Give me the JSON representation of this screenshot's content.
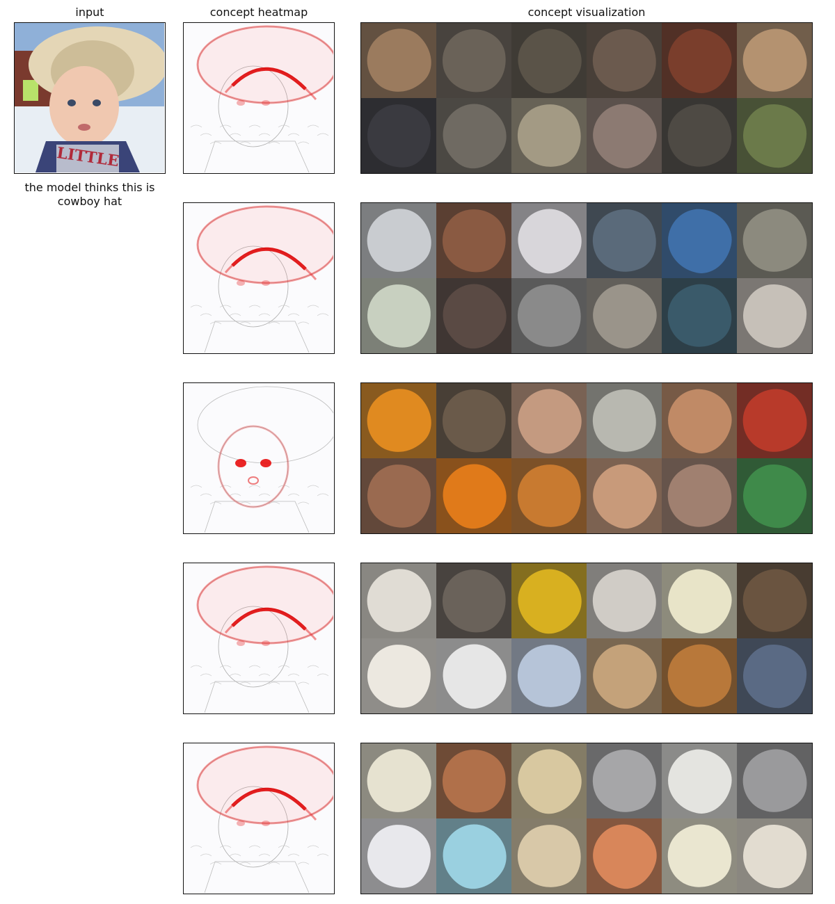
{
  "columns": {
    "input": "input",
    "heatmap": "concept heatmap",
    "visualization": "concept visualization"
  },
  "caption": "the model thinks this is cowboy hat",
  "input_image": {
    "description_icon": "child-in-cowboy-hat-photo",
    "shirt_text": "LITTLE"
  },
  "concepts": [
    {
      "heatmap_focus": "hat-brim",
      "tiles": [
        "#9b7b5e",
        "#6a6258",
        "#5a5348",
        "#6b5a4e",
        "#7a3e2c",
        "#b49270",
        "#3a3a40",
        "#6f6a62",
        "#a39a84",
        "#8c7a72",
        "#4e4a44",
        "#6b7a4a"
      ]
    },
    {
      "heatmap_focus": "hat-brim",
      "tiles": [
        "#c9ccd0",
        "#8a5a42",
        "#d8d6da",
        "#5a6a7a",
        "#3f6fa8",
        "#8c8a7e",
        "#c8d0c0",
        "#5a4a44",
        "#8a8a8a",
        "#9a948a",
        "#3a5a6a",
        "#c6c0b8"
      ]
    },
    {
      "heatmap_focus": "eyes",
      "tiles": [
        "#e08a20",
        "#6a5a4a",
        "#c49a80",
        "#b8b8b0",
        "#c08a66",
        "#b83a2a",
        "#9a6a50",
        "#e07a1a",
        "#c87a30",
        "#c89a7a",
        "#a08070",
        "#3f8a4a"
      ]
    },
    {
      "heatmap_focus": "hat-brim",
      "tiles": [
        "#e0dcd4",
        "#6a625a",
        "#d8b020",
        "#d0ccc6",
        "#e8e4c8",
        "#6a5440",
        "#ece8e0",
        "#e6e6e6",
        "#b6c4d8",
        "#c4a27a",
        "#b8783a",
        "#5a6a84"
      ]
    },
    {
      "heatmap_focus": "hat-brim",
      "tiles": [
        "#e6e2d0",
        "#b0704a",
        "#d8c8a0",
        "#a6a6a8",
        "#e4e4e0",
        "#9a9a9c",
        "#e8e8ec",
        "#9ad0e0",
        "#d8c8a8",
        "#d8865a",
        "#eae6d0",
        "#e2dcd0"
      ]
    }
  ]
}
